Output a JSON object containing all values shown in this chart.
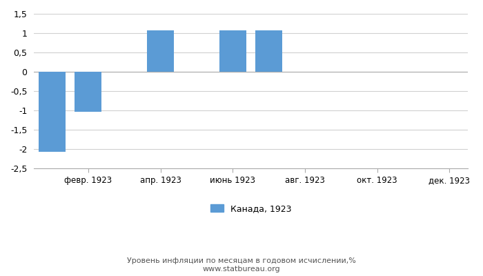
{
  "months_count": 12,
  "x_tick_positions": [
    1,
    3,
    5,
    7,
    9,
    11
  ],
  "x_tick_labels": [
    "февр. 1923",
    "апр. 1923",
    "июнь 1923",
    "авг. 1923",
    "окт. 1923",
    "дек. 1923"
  ],
  "bar_positions": [
    0,
    1,
    3,
    5,
    6
  ],
  "values": [
    -2.07,
    -1.03,
    1.08,
    1.08,
    1.08
  ],
  "bar_color": "#5b9bd5",
  "bar_width": 0.75,
  "ylim": [
    -2.5,
    1.5
  ],
  "yticks": [
    -2.5,
    -2.0,
    -1.5,
    -1.0,
    -0.5,
    0.0,
    0.5,
    1.0,
    1.5
  ],
  "ytick_labels": [
    "-2,5",
    "-2",
    "-1,5",
    "-1",
    "-0,5",
    "0",
    "0,5",
    "1",
    "1,5"
  ],
  "legend_label": "Канада, 1923",
  "footer_line1": "Уровень инфляции по месяцам в годовом исчислении,%",
  "footer_line2": "www.statbureau.org",
  "background_color": "#ffffff",
  "grid_color": "#d0d0d0",
  "spine_color": "#aaaaaa"
}
